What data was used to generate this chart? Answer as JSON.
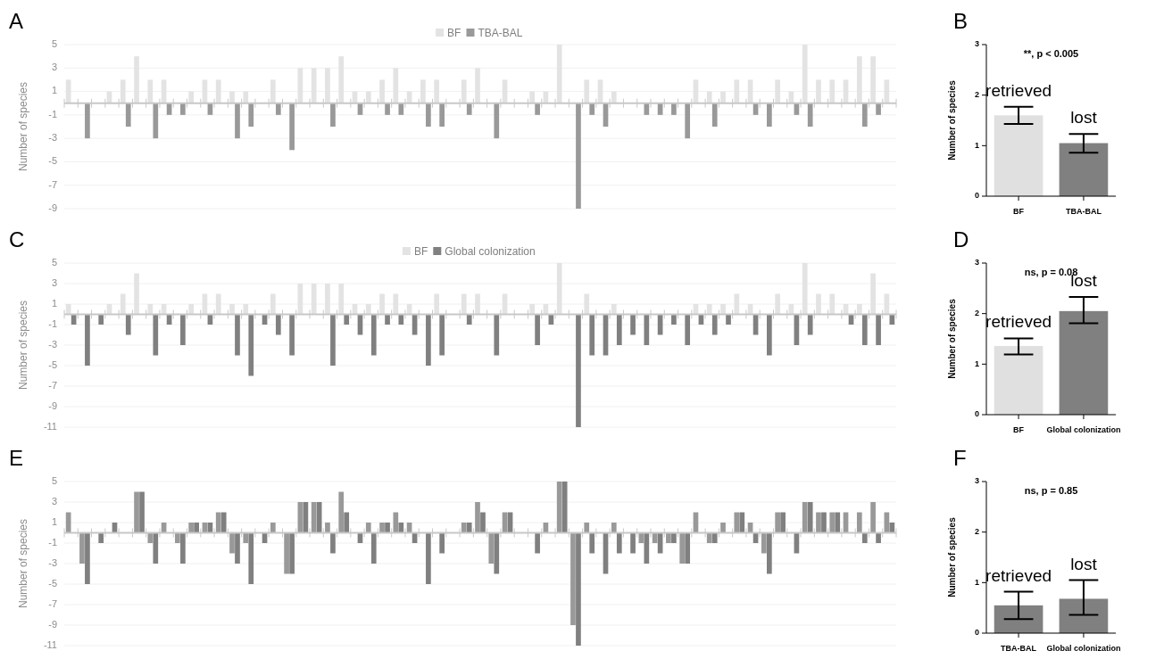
{
  "chart_data": [
    {
      "type": "bar",
      "title": "A",
      "ylabel": "Number of species",
      "legend": "top",
      "grid": "y",
      "ylim": [
        -9,
        5
      ],
      "yticks": [
        -9,
        -7,
        -5,
        -3,
        -1,
        1,
        3,
        5
      ],
      "categories": [
        null,
        null,
        null,
        null,
        null,
        null,
        null,
        null,
        null,
        null,
        null,
        null,
        null,
        null,
        null,
        null,
        null,
        null,
        null,
        null,
        null,
        null,
        null,
        null,
        null,
        null,
        null,
        null,
        null,
        null,
        null,
        null,
        null,
        null,
        null,
        null,
        null,
        null,
        null,
        null,
        null,
        null,
        null,
        null,
        null,
        null,
        null,
        null,
        null,
        null,
        null,
        null,
        null,
        null,
        null,
        null,
        null,
        null,
        null,
        null,
        null
      ],
      "series": [
        {
          "name": "BF",
          "color": "#e3e3e3",
          "values": [
            2,
            null,
            null,
            1,
            2,
            4,
            2,
            2,
            null,
            1,
            2,
            2,
            1,
            1,
            null,
            2,
            null,
            3,
            3,
            3,
            4,
            1,
            1,
            2,
            3,
            1,
            2,
            2,
            null,
            2,
            3,
            null,
            2,
            null,
            1,
            1,
            5,
            null,
            2,
            2,
            1,
            null,
            null,
            null,
            null,
            null,
            2,
            1,
            1,
            2,
            2,
            null,
            2,
            1,
            5,
            2,
            2,
            2,
            4,
            4,
            2
          ]
        },
        {
          "name": "TBA-BAL",
          "color": "#999999",
          "values": [
            null,
            -3,
            null,
            null,
            -2,
            null,
            -3,
            -1,
            -1,
            null,
            -1,
            null,
            -3,
            -2,
            null,
            -1,
            -4,
            null,
            null,
            -2,
            null,
            -1,
            null,
            -1,
            -1,
            null,
            -2,
            -2,
            null,
            -1,
            null,
            -3,
            null,
            null,
            -1,
            null,
            null,
            -9,
            -1,
            -2,
            null,
            null,
            -1,
            -1,
            -1,
            -3,
            null,
            -2,
            null,
            null,
            -1,
            -2,
            null,
            -1,
            -2,
            null,
            null,
            null,
            -2,
            -1,
            null
          ]
        }
      ]
    },
    {
      "type": "bar",
      "title": "B",
      "ylabel": "Number of species",
      "ylim": [
        0,
        3
      ],
      "yticks": [
        0,
        1,
        2,
        3
      ],
      "categories": [
        "BF",
        "TBA-BAL"
      ],
      "values": [
        1.6,
        1.05
      ],
      "colors": [
        "#e0e0e0",
        "#808080"
      ],
      "errors": [
        [
          1.43,
          1.77
        ],
        [
          0.86,
          1.23
        ]
      ],
      "annotations": [
        "**, p < 0.005",
        "retrieved",
        "lost"
      ]
    },
    {
      "type": "bar",
      "title": "C",
      "ylabel": "Number of species",
      "legend": "top",
      "grid": "y",
      "ylim": [
        -11,
        5
      ],
      "yticks": [
        -11,
        -9,
        -7,
        -5,
        -3,
        -1,
        1,
        3,
        5
      ],
      "categories": [
        null,
        null,
        null,
        null,
        null,
        null,
        null,
        null,
        null,
        null,
        null,
        null,
        null,
        null,
        null,
        null,
        null,
        null,
        null,
        null,
        null,
        null,
        null,
        null,
        null,
        null,
        null,
        null,
        null,
        null,
        null,
        null,
        null,
        null,
        null,
        null,
        null,
        null,
        null,
        null,
        null,
        null,
        null,
        null,
        null,
        null,
        null,
        null,
        null,
        null,
        null,
        null,
        null,
        null,
        null,
        null,
        null,
        null,
        null,
        null,
        null
      ],
      "series": [
        {
          "name": "BF",
          "color": "#e3e3e3",
          "values": [
            1,
            null,
            null,
            1,
            2,
            4,
            1,
            1,
            null,
            1,
            2,
            2,
            1,
            1,
            null,
            2,
            null,
            3,
            3,
            3,
            3,
            1,
            1,
            2,
            2,
            1,
            null,
            2,
            null,
            2,
            2,
            null,
            2,
            null,
            1,
            1,
            5,
            null,
            2,
            null,
            1,
            null,
            null,
            null,
            null,
            null,
            1,
            1,
            1,
            2,
            1,
            null,
            2,
            1,
            5,
            2,
            2,
            1,
            1,
            4,
            2
          ]
        },
        {
          "name": "Global colonization",
          "color": "#808080",
          "values": [
            -1,
            -5,
            -1,
            null,
            -2,
            null,
            -4,
            -1,
            -3,
            null,
            -1,
            null,
            -4,
            -6,
            -1,
            -2,
            -4,
            null,
            null,
            -5,
            -1,
            -2,
            -4,
            -1,
            -1,
            -2,
            -5,
            -4,
            null,
            -1,
            null,
            -4,
            null,
            null,
            -3,
            -1,
            null,
            -11,
            -4,
            -4,
            -3,
            -2,
            -3,
            -2,
            -1,
            -3,
            -1,
            -2,
            -1,
            null,
            -2,
            -4,
            null,
            -3,
            -2,
            null,
            null,
            -1,
            -3,
            -3,
            -1
          ]
        }
      ]
    },
    {
      "type": "bar",
      "title": "D",
      "ylabel": "Number of species",
      "ylim": [
        0,
        3
      ],
      "yticks": [
        0,
        1,
        2,
        3
      ],
      "categories": [
        "BF",
        "Global colonization"
      ],
      "values": [
        1.36,
        2.05
      ],
      "colors": [
        "#e0e0e0",
        "#808080"
      ],
      "errors": [
        [
          1.19,
          1.51
        ],
        [
          1.81,
          2.33
        ]
      ],
      "annotations": [
        "ns, p = 0.08",
        "retrieved",
        "lost"
      ]
    },
    {
      "type": "bar",
      "title": "E",
      "ylabel": "Number of species",
      "grid": "y",
      "ylim": [
        -11,
        5
      ],
      "yticks": [
        -11,
        -9,
        -7,
        -5,
        -3,
        -1,
        1,
        3,
        5
      ],
      "categories": [
        null,
        null,
        null,
        null,
        null,
        null,
        null,
        null,
        null,
        null,
        null,
        null,
        null,
        null,
        null,
        null,
        null,
        null,
        null,
        null,
        null,
        null,
        null,
        null,
        null,
        null,
        null,
        null,
        null,
        null,
        null,
        null,
        null,
        null,
        null,
        null,
        null,
        null,
        null,
        null,
        null,
        null,
        null,
        null,
        null,
        null,
        null,
        null,
        null,
        null,
        null,
        null,
        null,
        null,
        null,
        null,
        null,
        null,
        null,
        null,
        null
      ],
      "series": [
        {
          "color": "#999999",
          "values": [
            2,
            -3,
            null,
            null,
            null,
            4,
            -1,
            1,
            -1,
            1,
            1,
            2,
            -2,
            -1,
            null,
            1,
            -4,
            3,
            3,
            1,
            4,
            null,
            1,
            1,
            2,
            1,
            null,
            null,
            null,
            1,
            3,
            -3,
            2,
            null,
            null,
            1,
            5,
            -9,
            1,
            null,
            1,
            null,
            -1,
            -1,
            -1,
            -3,
            2,
            -1,
            1,
            2,
            1,
            -2,
            2,
            null,
            3,
            2,
            2,
            2,
            2,
            3,
            2
          ]
        },
        {
          "color": "#808080",
          "values": [
            null,
            -5,
            -1,
            1,
            null,
            4,
            -3,
            null,
            -3,
            1,
            1,
            2,
            -3,
            -5,
            -1,
            null,
            -4,
            3,
            3,
            -2,
            2,
            -1,
            -3,
            1,
            1,
            -1,
            -5,
            -2,
            null,
            1,
            2,
            -4,
            2,
            null,
            -2,
            null,
            5,
            -11,
            -2,
            -4,
            -2,
            -2,
            -3,
            -2,
            -1,
            -3,
            null,
            -1,
            null,
            2,
            -1,
            -4,
            2,
            -2,
            3,
            2,
            2,
            null,
            -1,
            -1,
            1
          ]
        }
      ]
    },
    {
      "type": "bar",
      "title": "F",
      "ylabel": "Number of species",
      "ylim": [
        0,
        3
      ],
      "yticks": [
        0,
        1,
        2,
        3
      ],
      "categories": [
        "TBA-BAL",
        "Global colonization"
      ],
      "values": [
        0.55,
        0.68
      ],
      "colors": [
        "#808080",
        "#808080"
      ],
      "errors": [
        [
          0.28,
          0.82
        ],
        [
          0.36,
          1.05
        ]
      ],
      "annotations": [
        "ns, p = 0.85",
        "retrieved",
        "lost"
      ]
    }
  ]
}
